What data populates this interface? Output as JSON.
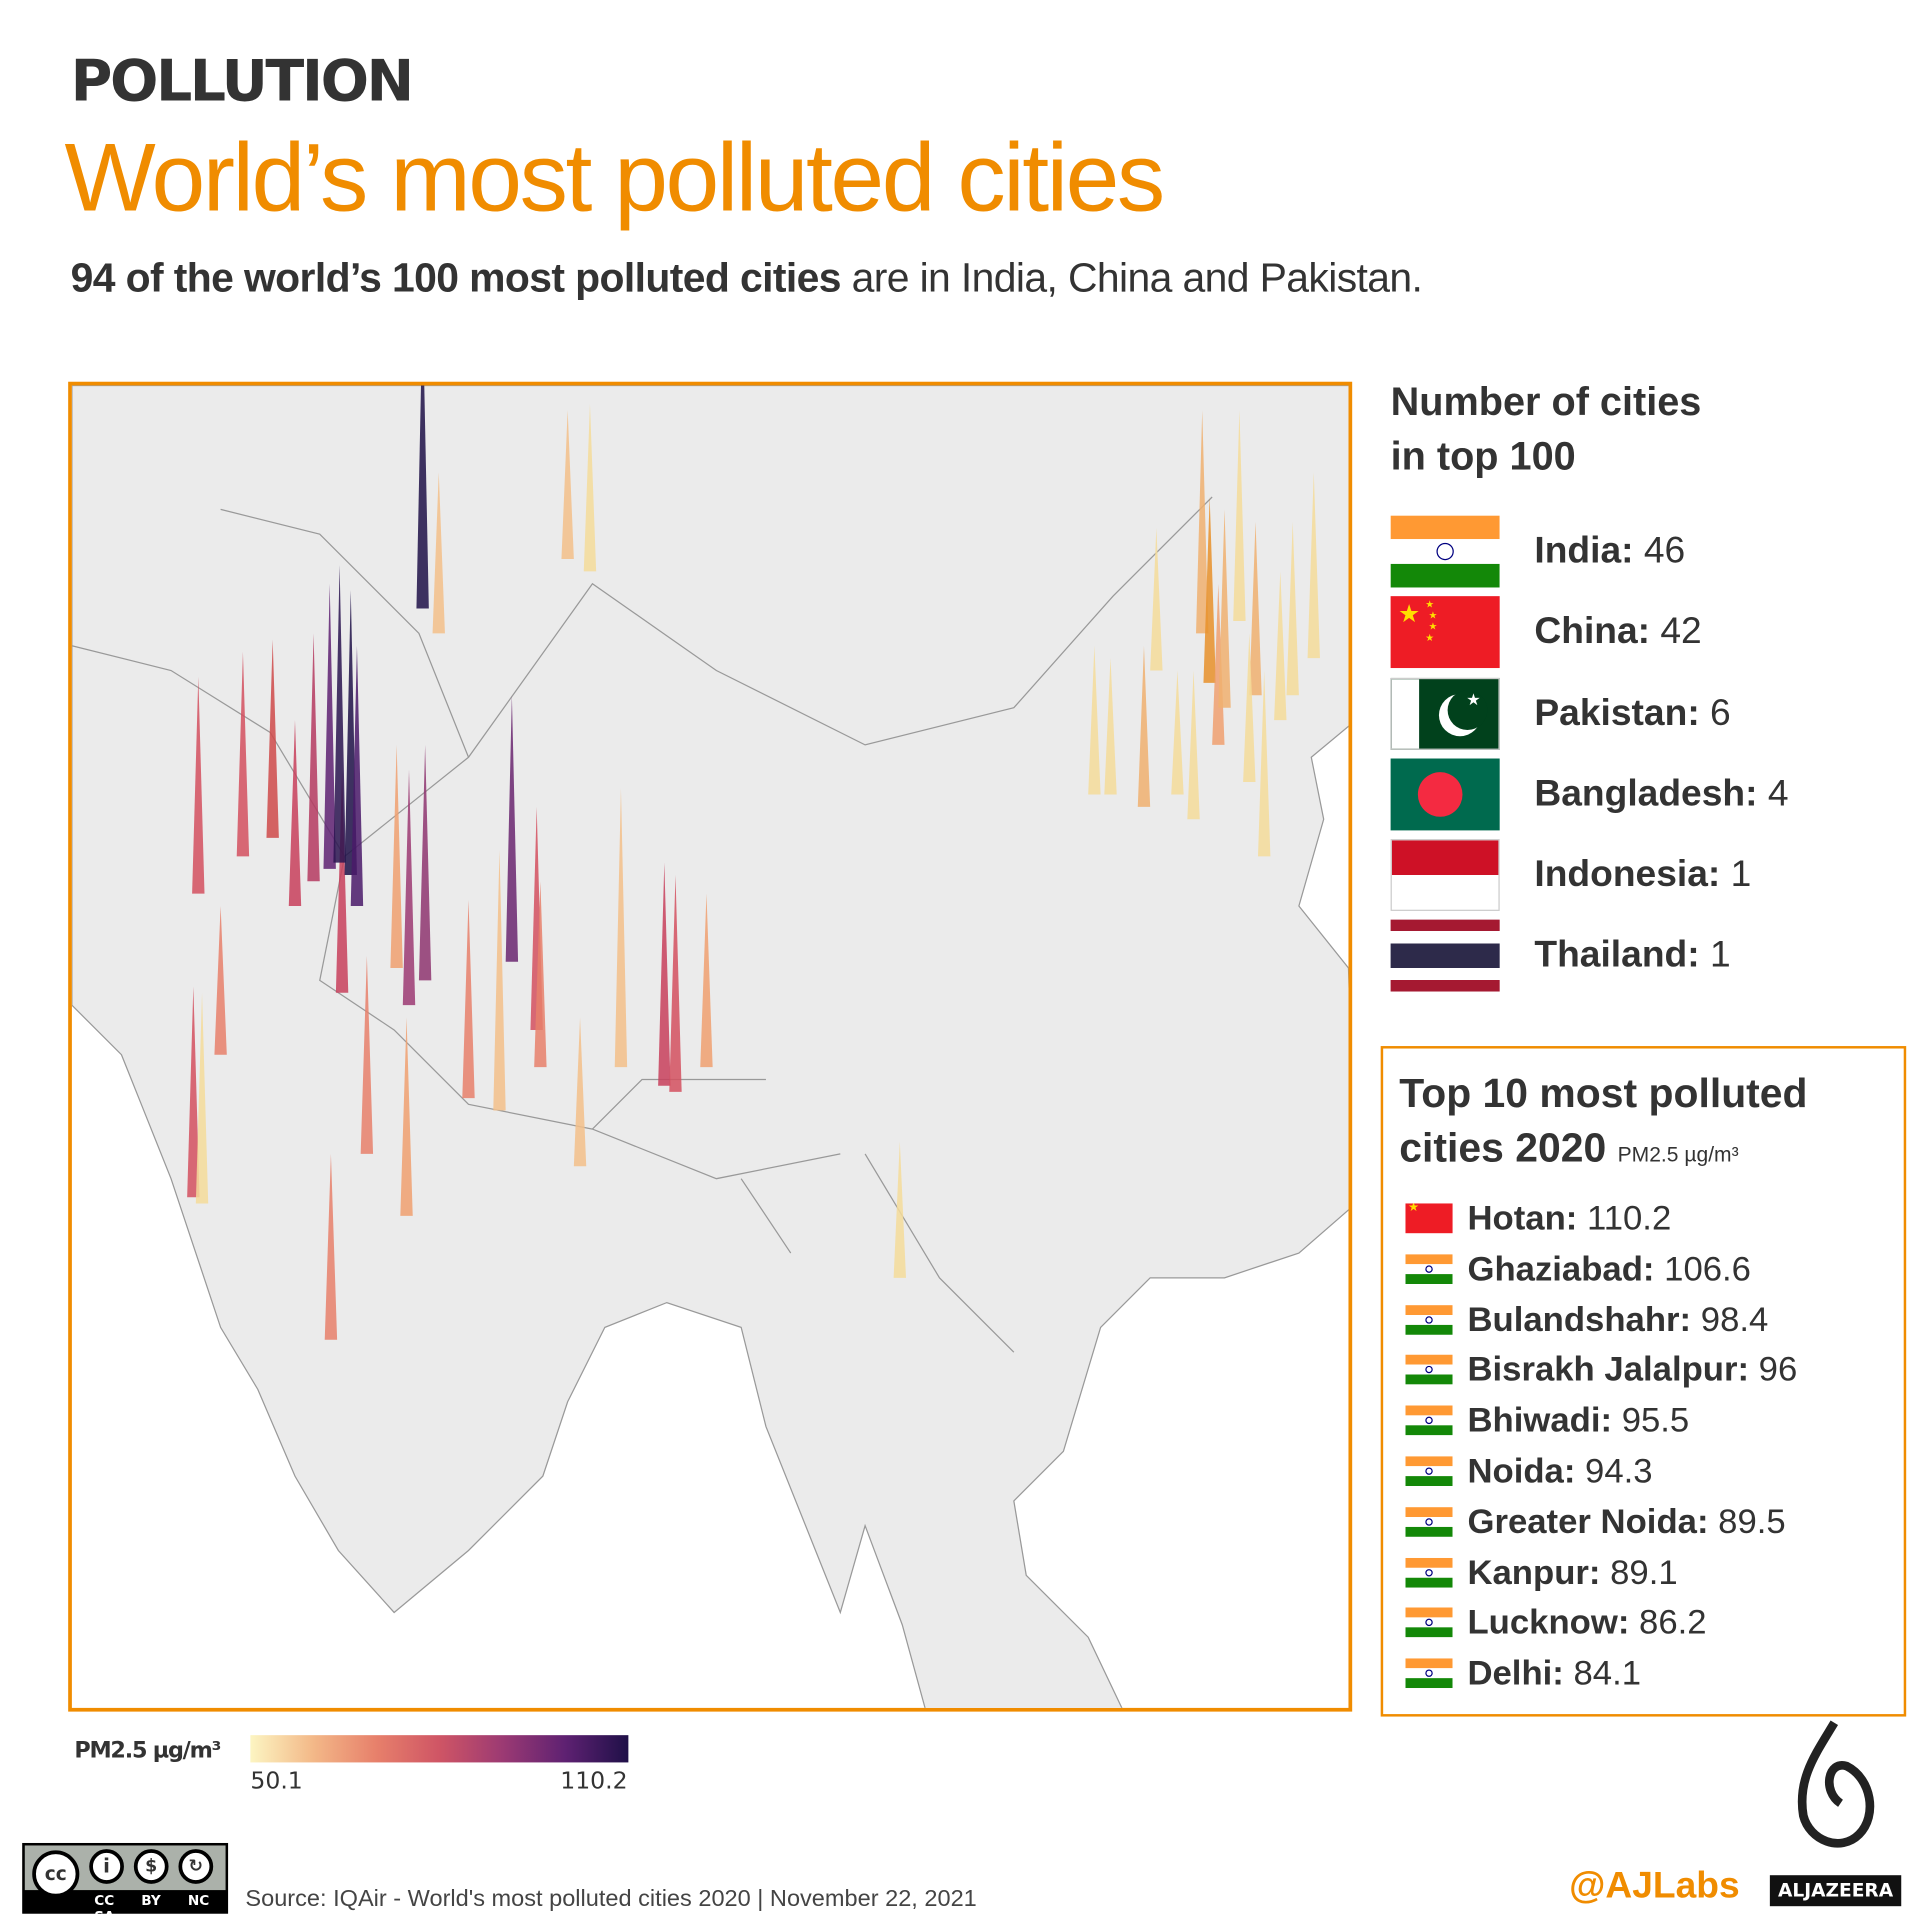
{
  "header": {
    "kicker": "POLLUTION",
    "title": "World’s most polluted cities",
    "subtitle_bold": "94 of the world’s 100 most polluted cities",
    "subtitle_rest": " are in India, China and Pakistan."
  },
  "counts": {
    "title_line1": "Number of cities",
    "title_line2": "in top 100",
    "items": [
      {
        "country": "India:",
        "count": " 46",
        "flag": "india-flag"
      },
      {
        "country": "China:",
        "count": " 42",
        "flag": "china-flag"
      },
      {
        "country": "Pakistan:",
        "count": " 6",
        "flag": "pakistan-flag"
      },
      {
        "country": "Bangladesh:",
        "count": " 4",
        "flag": "bangladesh-flag"
      },
      {
        "country": "Indonesia:",
        "count": " 1",
        "flag": "indonesia-flag"
      },
      {
        "country": "Thailand:",
        "count": " 1",
        "flag": "thailand-flag"
      }
    ]
  },
  "top10": {
    "title_line1": "Top 10 most polluted",
    "title_line2": "cities 2020",
    "unit": "PM2.5 µg/m³",
    "items": [
      {
        "city": "Hotan:",
        "value": " 110.2",
        "flag": "china"
      },
      {
        "city": "Ghaziabad:",
        "value": " 106.6",
        "flag": "india"
      },
      {
        "city": "Bulandshahr:",
        "value": " 98.4",
        "flag": "india"
      },
      {
        "city": "Bisrakh Jalalpur:",
        "value": " 96",
        "flag": "india"
      },
      {
        "city": "Bhiwadi:",
        "value": " 95.5",
        "flag": "india"
      },
      {
        "city": "Noida:",
        "value": " 94.3",
        "flag": "india"
      },
      {
        "city": "Greater Noida:",
        "value": " 89.5",
        "flag": "india"
      },
      {
        "city": "Kanpur:",
        "value": " 89.1",
        "flag": "india"
      },
      {
        "city": "Lucknow:",
        "value": " 86.2",
        "flag": "india"
      },
      {
        "city": "Delhi:",
        "value": " 84.1",
        "flag": "india"
      }
    ]
  },
  "legend": {
    "label": "PM2.5 µg/m³",
    "min": "50.1",
    "max": "110.2",
    "colors": [
      "#fcf5c2",
      "#e7806b",
      "#9c3a73",
      "#1f1048"
    ]
  },
  "footer": {
    "source": "Source: IQAir - World's most polluted cities 2020 | November 22, 2021",
    "license": "CC BY NC SA",
    "handle": "@AJLabs",
    "brand": "ALJAZEERA"
  },
  "colors": {
    "accent": "#f08c00",
    "text": "#333333",
    "land": "#ebebeb"
  }
}
